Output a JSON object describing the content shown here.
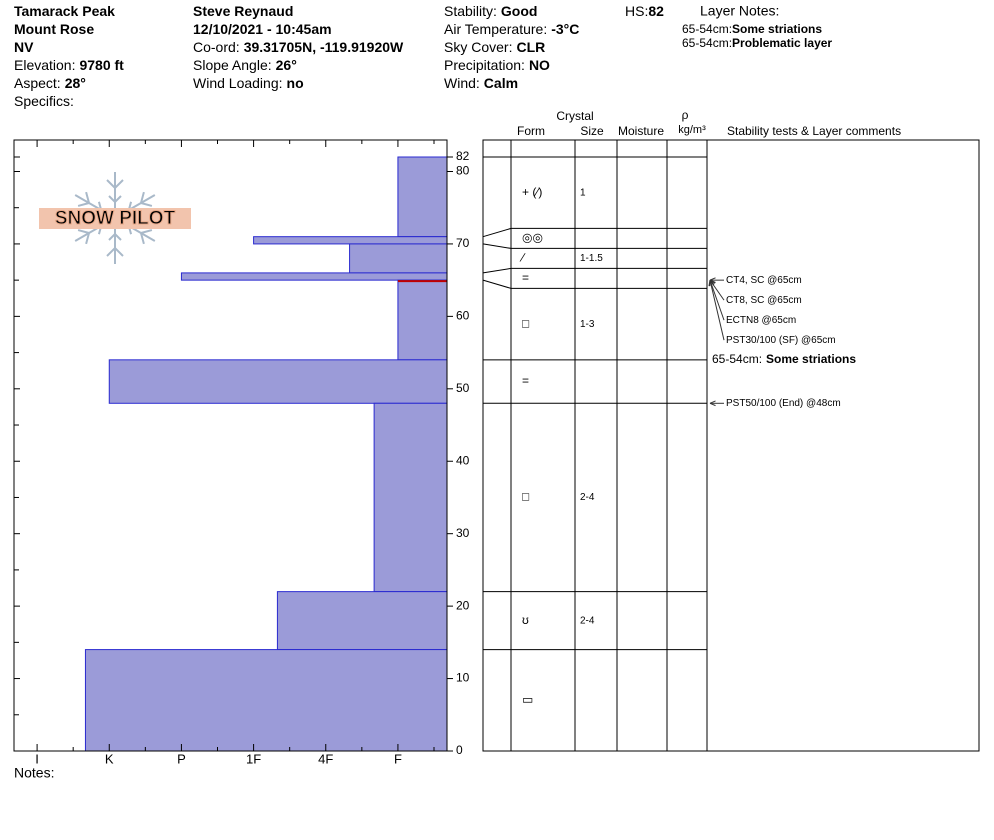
{
  "header": {
    "columns": [
      [
        {
          "value": "Tamarack Peak"
        },
        {
          "value": "Mount Rose"
        },
        {
          "value": "NV"
        },
        {
          "label": "Elevation:",
          "value": "9780 ft"
        },
        {
          "label": "Aspect:",
          "value": "28°"
        },
        {
          "label": "Specifics:"
        }
      ],
      [
        {
          "value": "Steve Reynaud"
        },
        {
          "value": "12/10/2021 - 10:45am"
        },
        {
          "label": "Co-ord:",
          "value": "39.31705N, -119.91920W"
        },
        {
          "label": "Slope Angle:",
          "value": "26°"
        },
        {
          "label": "Wind Loading:",
          "value": "no"
        }
      ],
      [
        {
          "label": "Stability:",
          "value": "Good"
        },
        {
          "label": "Air Temperature:",
          "value": "-3°C"
        },
        {
          "label": "Sky Cover:",
          "value": "CLR"
        },
        {
          "label": "Precipitation:",
          "value": "NO"
        },
        {
          "label": "Wind:",
          "value": "Calm"
        }
      ]
    ],
    "hs": {
      "label": "HS:",
      "value": 82
    },
    "layer_notes": {
      "title": "Layer Notes:",
      "items": [
        {
          "range": "65-54cm:",
          "text": "Some striations"
        },
        {
          "range": "65-54cm:",
          "text": "Problematic layer"
        }
      ]
    }
  },
  "logo": "SNOW PILOT",
  "profile": {
    "ylim": [
      0,
      82
    ],
    "yticks": [
      0,
      10,
      20,
      30,
      40,
      50,
      60,
      70,
      80,
      82
    ],
    "hardness_lim": [
      6.32,
      0.32
    ],
    "hardness_ticks": [
      {
        "value": 6,
        "label": "I"
      },
      {
        "value": 5,
        "label": "K"
      },
      {
        "value": 4,
        "label": "P"
      },
      {
        "value": 3,
        "label": "1F"
      },
      {
        "value": 2,
        "label": "4F"
      },
      {
        "value": 1,
        "label": "F"
      }
    ],
    "color": "#9b9bd8",
    "critical_depth": 65,
    "critical_color": "#c00000",
    "layers": [
      {
        "top": 82,
        "bottom": 71,
        "hardness": 1,
        "form": "+ (∕)",
        "size": "1"
      },
      {
        "top": 71,
        "bottom": 70,
        "hardness": 3,
        "form": "◎◎"
      },
      {
        "top": 70,
        "bottom": 66,
        "hardness": 1.67,
        "form": "∕",
        "size": "1-1.5"
      },
      {
        "top": 66,
        "bottom": 65,
        "hardness": 4,
        "form": "="
      },
      {
        "top": 65,
        "bottom": 54,
        "hardness": 1,
        "form": "□",
        "size": "1-3"
      },
      {
        "top": 54,
        "bottom": 48,
        "hardness": 5,
        "form": "="
      },
      {
        "top": 48,
        "bottom": 22,
        "hardness": 1.33,
        "form": "□",
        "size": "2-4"
      },
      {
        "top": 22,
        "bottom": 14,
        "hardness": 2.67,
        "form": "ʊ",
        "size": "2-4"
      },
      {
        "top": 14,
        "bottom": 0,
        "hardness": 5.33,
        "form": "▭"
      }
    ]
  },
  "right_panel": {
    "crystal": "Crystal",
    "form": "Form",
    "size": "Size",
    "moisture": "Moisture",
    "density_symbol": "ρ",
    "density_unit": "kg/m³",
    "comments": "Stability tests & Layer comments"
  },
  "stability_tests": [
    {
      "text": "CT4, SC @65cm",
      "depth": 65
    },
    {
      "text": "CT8, SC @65cm",
      "depth": 65
    },
    {
      "text": "ECTN8 @65cm",
      "depth": 65
    },
    {
      "text": "PST30/100 (SF) @65cm",
      "depth": 65
    },
    {
      "text": "PST50/100 (End) @48cm",
      "depth": 48
    }
  ],
  "layer_comments": [
    {
      "range": "65-54cm:",
      "text": "Some striations",
      "depth": 65
    }
  ],
  "notes_label": "Notes:"
}
